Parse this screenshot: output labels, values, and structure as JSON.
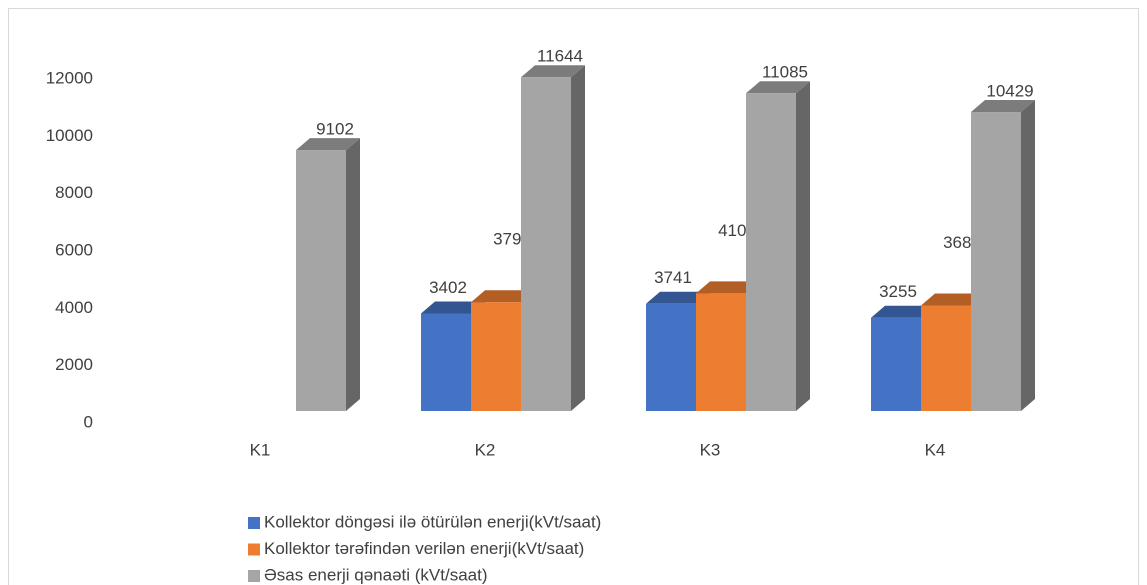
{
  "chart_data": {
    "type": "bar3d",
    "categories": [
      "K1",
      "K2",
      "K3",
      "K4"
    ],
    "series": [
      {
        "name": "Kollektor döngəsi ilə ötürülən enerji(kVt/saat)",
        "color": "#4472c4",
        "values": [
          null,
          3402,
          3741,
          3255
        ]
      },
      {
        "name": "Kollektor tərəfindən verilən enerji(kVt/saat)",
        "color": "#ed7d31",
        "values": [
          null,
          3794,
          4105,
          3682
        ]
      },
      {
        "name": "Əsas enerji qənaəti (kVt/saat)",
        "color": "#a5a5a5",
        "values": [
          9102,
          11644,
          11085,
          10429
        ]
      }
    ],
    "ylim": [
      0,
      12000
    ],
    "yticks": [
      0,
      2000,
      4000,
      6000,
      8000,
      10000,
      12000
    ]
  }
}
